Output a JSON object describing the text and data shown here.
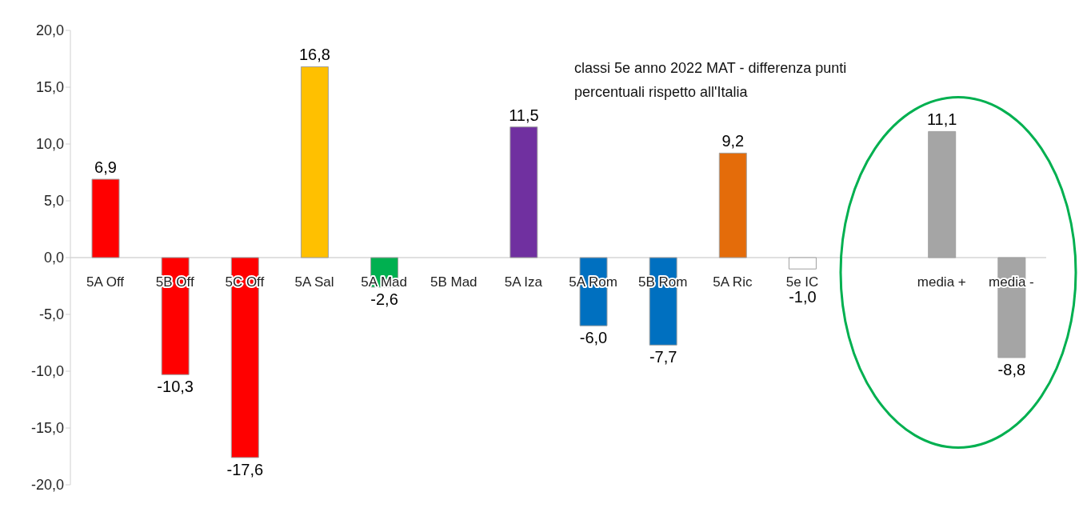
{
  "chart_data": {
    "type": "bar",
    "annotations": [
      "classi 5e anno 2022 MAT - differenza punti percentuali rispetto all'Italia"
    ],
    "categories": [
      "5A Off",
      "5B Off",
      "5C Off",
      "5A Sal",
      "5A Mad",
      "5B Mad",
      "5A Iza",
      "5A Rom",
      "5B Rom",
      "5A Ric",
      "5e IC",
      null,
      "media +",
      "media -"
    ],
    "values": [
      6.9,
      -10.3,
      -17.6,
      16.8,
      -2.6,
      null,
      11.5,
      -6.0,
      -7.7,
      9.2,
      -1.0,
      null,
      11.1,
      -8.8
    ],
    "colors": [
      "#ff0000",
      "#ff0000",
      "#ff0000",
      "#ffc000",
      "#00b050",
      "#ffffff",
      "#7030a0",
      "#0070c0",
      "#0070c0",
      "#e46c0a",
      "#ffffff",
      "#ffffff",
      "#a5a5a5",
      "#a5a5a5"
    ],
    "value_labels": [
      "6,9",
      "-10,3",
      "-17,6",
      "16,8",
      "-2,6",
      null,
      "11,5",
      "-6,0",
      "-7,7",
      "9,2",
      "-1,0",
      null,
      "11,1",
      "-8,8"
    ],
    "ylim": [
      -20,
      20
    ],
    "yticks": [
      {
        "value": -20,
        "label": "-20,0"
      },
      {
        "value": -15,
        "label": "-15,0"
      },
      {
        "value": -10,
        "label": "-10,0"
      },
      {
        "value": -5,
        "label": "-5,0"
      },
      {
        "value": 0,
        "label": "0,0"
      },
      {
        "value": 5,
        "label": "5,0"
      },
      {
        "value": 10,
        "label": "10,0"
      },
      {
        "value": 15,
        "label": "15,0"
      },
      {
        "value": 20,
        "label": "20,0"
      }
    ],
    "grid": false,
    "legend": false
  }
}
